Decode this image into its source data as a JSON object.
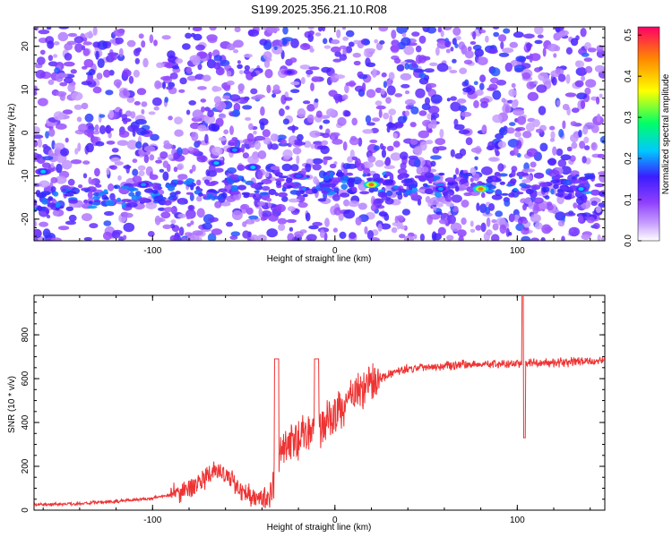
{
  "title": "S199.2025.356.21.10.R08",
  "colors": {
    "snr_line": "#ee3333",
    "axis": "#000000",
    "background": "#ffffff"
  },
  "chart_data": [
    {
      "type": "heatmap",
      "title": "S199.2025.356.21.10.R08",
      "xlabel": "Height of straight line (km)",
      "ylabel": "Frequency (Hz)",
      "xlim": [
        -165,
        148
      ],
      "ylim": [
        -25,
        24.5
      ],
      "x_ticks": [
        -100,
        0,
        100
      ],
      "y_ticks": [
        -20,
        -10,
        0,
        10,
        20
      ],
      "colorbar": {
        "label": "Normalized spectral amplitude",
        "range": [
          0,
          0.52
        ],
        "ticks": [
          0.0,
          0.1,
          0.2,
          0.3,
          0.4,
          0.5
        ]
      },
      "features": [
        {
          "x": -160,
          "y": -9,
          "value": 0.22
        },
        {
          "x": -105,
          "y": -12,
          "value": 0.2
        },
        {
          "x": -65,
          "y": -7,
          "value": 0.22
        },
        {
          "x": -55,
          "y": -4,
          "value": 0.2
        },
        {
          "x": -45,
          "y": -8,
          "value": 0.22
        },
        {
          "x": -25,
          "y": 14,
          "value": 0.15
        },
        {
          "x": -20,
          "y": -10,
          "value": 0.18
        },
        {
          "x": 20,
          "y": -12,
          "value": 0.46
        },
        {
          "x": 58,
          "y": -13,
          "value": 0.2
        },
        {
          "x": 80,
          "y": -13,
          "value": 0.45
        },
        {
          "x": 135,
          "y": -13,
          "value": 0.22
        }
      ]
    },
    {
      "type": "line",
      "xlabel": "Height of straight line (km)",
      "ylabel": "SNR (10 * v/v)",
      "xlim": [
        -165,
        148
      ],
      "ylim": [
        0,
        980
      ],
      "x_ticks": [
        -100,
        0,
        100
      ],
      "y_ticks": [
        0,
        200,
        400,
        600,
        800
      ],
      "series": [
        {
          "x": [
            -165,
            -140,
            -120,
            -100,
            -90,
            -80,
            -72,
            -66,
            -60,
            -55,
            -50,
            -45,
            -40,
            -36,
            -33,
            -30,
            -25,
            -20,
            -15,
            -10,
            -5,
            0,
            5,
            10,
            15,
            20,
            25,
            30,
            35,
            40,
            50,
            60,
            70,
            80,
            90,
            100,
            104,
            110,
            120,
            130,
            148
          ],
          "y": [
            25,
            30,
            40,
            55,
            70,
            100,
            140,
            180,
            160,
            120,
            90,
            65,
            50,
            60,
            150,
            270,
            300,
            320,
            350,
            380,
            400,
            440,
            480,
            520,
            555,
            580,
            600,
            620,
            635,
            645,
            655,
            660,
            665,
            665,
            665,
            670,
            670,
            670,
            672,
            675,
            680
          ]
        }
      ],
      "spikes": [
        {
          "x": -32,
          "y": 690
        },
        {
          "x": -10,
          "y": 690
        },
        {
          "x": 103,
          "y": 980
        },
        {
          "x": 104,
          "y": 330
        }
      ]
    }
  ]
}
